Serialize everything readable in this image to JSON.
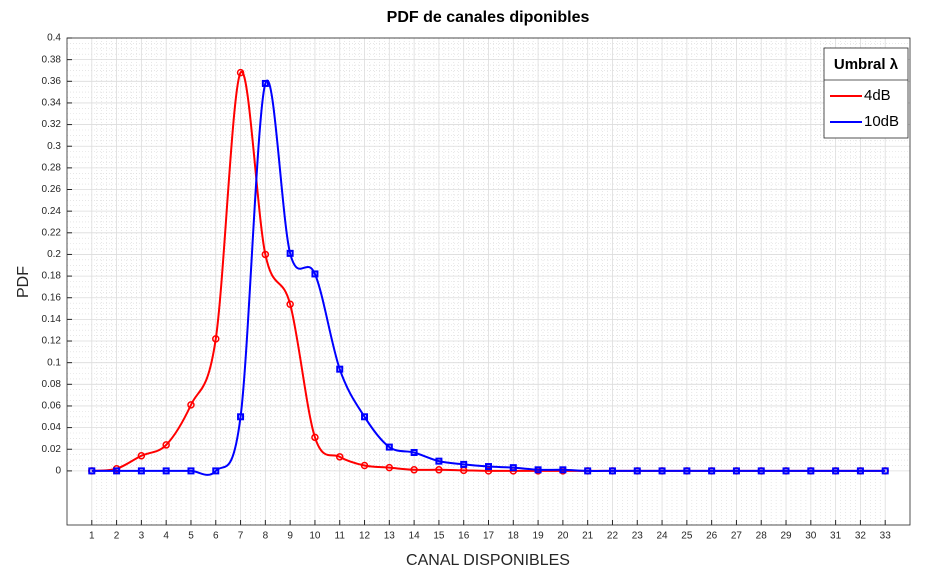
{
  "chart_data": {
    "type": "line",
    "title": "PDF de canales diponibles",
    "xlabel": "CANAL DISPONIBLES",
    "ylabel": "PDF",
    "x": [
      1,
      2,
      3,
      4,
      5,
      6,
      7,
      8,
      9,
      10,
      11,
      12,
      13,
      14,
      15,
      16,
      17,
      18,
      19,
      20,
      21,
      22,
      23,
      24,
      25,
      26,
      27,
      28,
      29,
      30,
      31,
      32,
      33
    ],
    "xlim": [
      0,
      34
    ],
    "xticks": [
      1,
      2,
      3,
      4,
      5,
      6,
      7,
      8,
      9,
      10,
      11,
      12,
      13,
      14,
      15,
      16,
      17,
      18,
      19,
      20,
      21,
      22,
      23,
      24,
      25,
      26,
      27,
      28,
      29,
      30,
      31,
      32,
      33
    ],
    "ylim": [
      -0.05,
      0.4
    ],
    "yticks": [
      0,
      0.02,
      0.04,
      0.06,
      0.08,
      0.1,
      0.12,
      0.14,
      0.16,
      0.18,
      0.2,
      0.22,
      0.24,
      0.26,
      0.28,
      0.3,
      0.32,
      0.34,
      0.36,
      0.38,
      0.4
    ],
    "grid": true,
    "minor_grid": true,
    "legend_title": "Umbral λ",
    "legend_position": "northeast",
    "series": [
      {
        "name": "4dB",
        "color": "#ff0000",
        "marker": "circle",
        "values": [
          0,
          0.002,
          0.014,
          0.024,
          0.061,
          0.122,
          0.368,
          0.2,
          0.154,
          0.031,
          0.013,
          0.005,
          0.003,
          0.001,
          0.001,
          0.0005,
          0,
          0,
          0,
          0,
          0,
          0,
          0,
          0,
          0,
          0,
          0,
          0,
          0,
          0,
          0,
          0,
          0
        ]
      },
      {
        "name": "10dB",
        "color": "#0000ff",
        "marker": "square",
        "values": [
          0,
          0,
          0,
          0,
          0,
          0,
          0.05,
          0.358,
          0.201,
          0.182,
          0.094,
          0.05,
          0.022,
          0.017,
          0.009,
          0.006,
          0.004,
          0.003,
          0.001,
          0.001,
          0,
          0,
          0,
          0,
          0,
          0,
          0,
          0,
          0,
          0,
          0,
          0,
          0
        ]
      }
    ]
  }
}
